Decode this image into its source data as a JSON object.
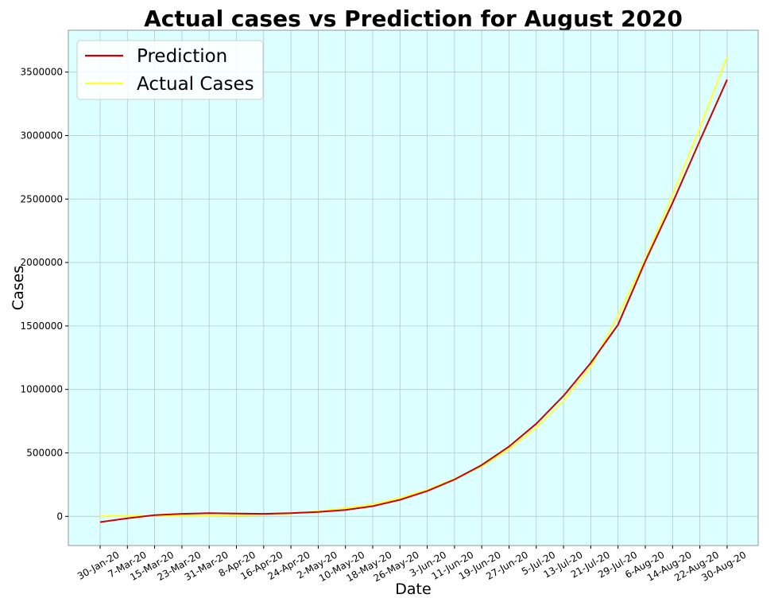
{
  "chart_data": {
    "type": "line",
    "title": "Actual cases vs Prediction for August 2020",
    "xlabel": "Date",
    "ylabel": "Cases",
    "categories": [
      "30-Jan-20",
      "7-Mar-20",
      "15-Mar-20",
      "23-Mar-20",
      "31-Mar-20",
      "8-Apr-20",
      "16-Apr-20",
      "24-Apr-20",
      "2-May-20",
      "10-May-20",
      "18-May-20",
      "26-May-20",
      "3-Jun-20",
      "11-Jun-20",
      "19-Jun-20",
      "27-Jun-20",
      "5-Jul-20",
      "13-Jul-20",
      "21-Jul-20",
      "29-Jul-20",
      "6-Aug-20",
      "14-Aug-20",
      "22-Aug-20",
      "30-Aug-20"
    ],
    "series": [
      {
        "name": "Prediction",
        "color": "#cc0000",
        "values": [
          -45000,
          -15000,
          10000,
          20000,
          25000,
          22000,
          20000,
          25000,
          35000,
          50000,
          80000,
          130000,
          200000,
          290000,
          405000,
          550000,
          730000,
          950000,
          1210000,
          1510000,
          2010000,
          2470000,
          2960000,
          3440000
        ]
      },
      {
        "name": "Actual Cases",
        "color": "#ffff33",
        "values": [
          0,
          3000,
          3500,
          4000,
          5000,
          8000,
          13000,
          24000,
          40000,
          65000,
          95000,
          145000,
          210000,
          295000,
          395000,
          530000,
          700000,
          910000,
          1180000,
          1580000,
          2030000,
          2530000,
          3060000,
          3620000
        ]
      }
    ],
    "ylim": [
      -230000,
      3830000
    ],
    "yticks": [
      0,
      500000,
      1000000,
      1500000,
      2000000,
      2500000,
      3000000,
      3500000
    ],
    "grid": true,
    "legend": "top-left",
    "plot_background": "#dcffff"
  }
}
